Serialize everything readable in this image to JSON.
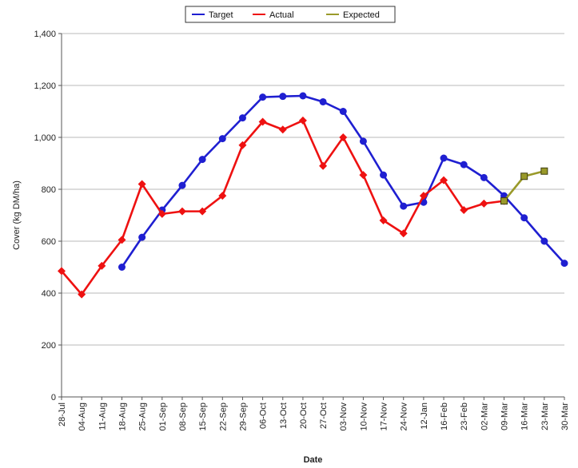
{
  "chart_data": {
    "type": "line",
    "xlabel": "Date",
    "ylabel": "Cover (kg DM/ha)",
    "ylim": [
      0,
      1400
    ],
    "yticks": [
      0,
      200,
      400,
      600,
      800,
      1000,
      1200,
      1400
    ],
    "ytick_labels": [
      "0",
      "200",
      "400",
      "600",
      "800",
      "1,000",
      "1,200",
      "1,400"
    ],
    "grid": true,
    "legend_position": "top-center",
    "categories": [
      "28-Jul",
      "04-Aug",
      "11-Aug",
      "18-Aug",
      "25-Aug",
      "01-Sep",
      "08-Sep",
      "15-Sep",
      "22-Sep",
      "29-Sep",
      "06-Oct",
      "13-Oct",
      "20-Oct",
      "27-Oct",
      "03-Nov",
      "10-Nov",
      "17-Nov",
      "24-Nov",
      "12-Jan",
      "16-Feb",
      "23-Feb",
      "02-Mar",
      "09-Mar",
      "16-Mar",
      "23-Mar",
      "30-Mar"
    ],
    "series": [
      {
        "name": "Target",
        "color": "#1f1fd1",
        "marker": "circle",
        "values": [
          null,
          null,
          null,
          500,
          615,
          720,
          815,
          915,
          995,
          1075,
          1155,
          1158,
          1160,
          1137,
          1100,
          985,
          855,
          735,
          750,
          920,
          895,
          845,
          775,
          690,
          600,
          515
        ]
      },
      {
        "name": "Actual",
        "color": "#ee1111",
        "marker": "diamond",
        "values": [
          485,
          395,
          505,
          605,
          820,
          705,
          715,
          715,
          775,
          970,
          1060,
          1030,
          1065,
          890,
          1000,
          855,
          680,
          630,
          775,
          835,
          720,
          745,
          755,
          null,
          null,
          null
        ]
      },
      {
        "name": "Expected",
        "color": "#9a9a2a",
        "marker": "square",
        "values": [
          null,
          null,
          null,
          null,
          null,
          null,
          null,
          null,
          null,
          null,
          null,
          null,
          null,
          null,
          null,
          null,
          null,
          null,
          null,
          null,
          null,
          null,
          755,
          850,
          870,
          null
        ]
      }
    ]
  }
}
